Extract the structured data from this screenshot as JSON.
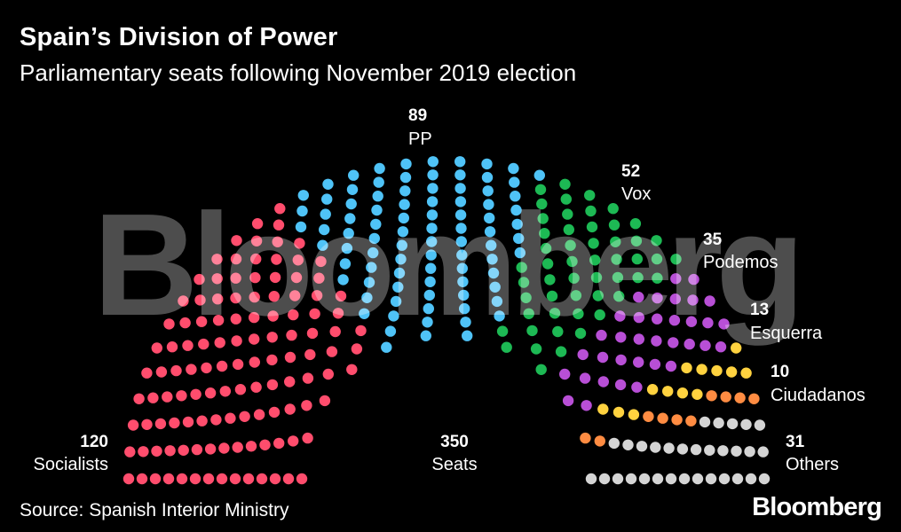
{
  "header": {
    "title": "Spain’s Division of Power",
    "subtitle": "Parliamentary seats following November 2019 election"
  },
  "footer": {
    "source": "Source: Spanish Interior Ministry",
    "brand": "Bloomberg"
  },
  "watermark": "Bloomberg",
  "chart_data": {
    "type": "parliament",
    "title": "Spain’s Division of Power",
    "subtitle": "Parliamentary seats following November 2019 election",
    "total_seats": 350,
    "total_label": "Seats",
    "series": [
      {
        "name": "Socialists",
        "seats": 120,
        "color": "#ff4d6d"
      },
      {
        "name": "PP",
        "seats": 89,
        "color": "#4fc3f7"
      },
      {
        "name": "Vox",
        "seats": 52,
        "color": "#1db954"
      },
      {
        "name": "Podemos",
        "seats": 35,
        "color": "#b84fd6"
      },
      {
        "name": "Esquerra",
        "seats": 13,
        "color": "#ffd23f"
      },
      {
        "name": "Ciudadanos",
        "seats": 10,
        "color": "#ff8c42"
      },
      {
        "name": "Others",
        "seats": 31,
        "color": "#d4d4d4"
      }
    ]
  }
}
